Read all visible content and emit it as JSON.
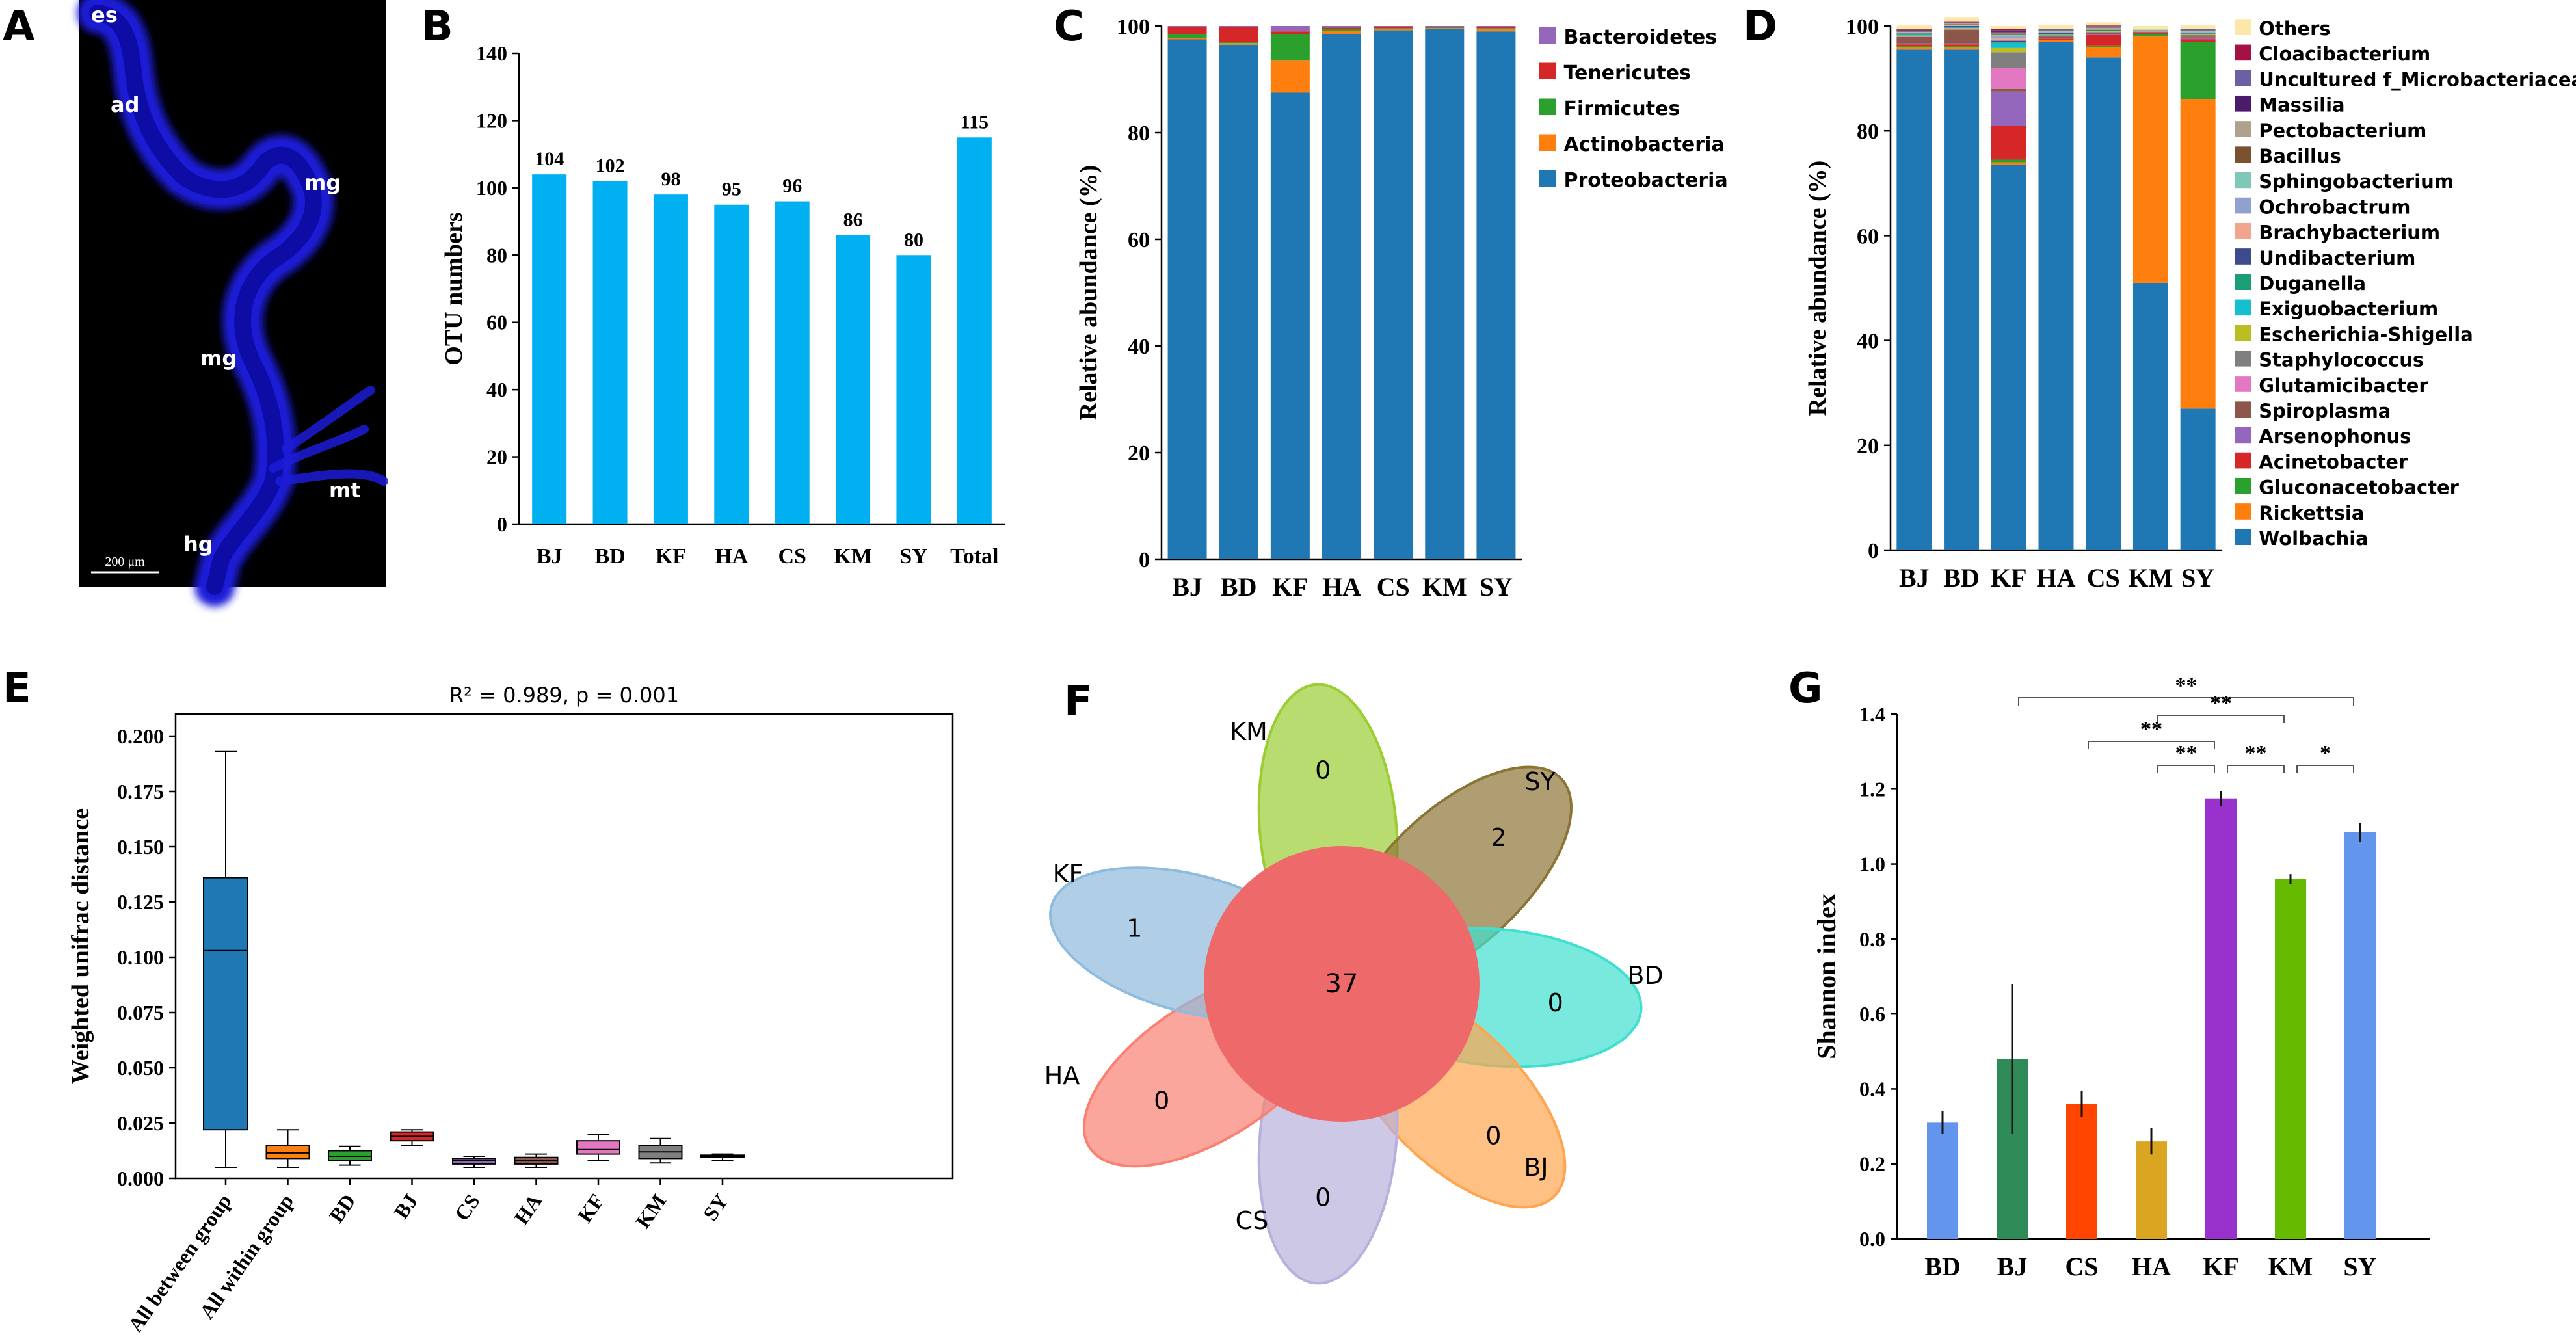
{
  "panel_letters": [
    "A",
    "B",
    "C",
    "D",
    "E",
    "F",
    "G"
  ],
  "micro": {
    "labels": [
      "es",
      "ad",
      "mg",
      "mg",
      "mt",
      "hg"
    ],
    "scale_label": "200 μm"
  },
  "chart_data": [
    {
      "panel": "B",
      "type": "bar",
      "categories": [
        "BJ",
        "BD",
        "KF",
        "HA",
        "CS",
        "KM",
        "SY",
        "Total"
      ],
      "values": [
        104,
        102,
        98,
        95,
        96,
        86,
        80,
        115
      ],
      "ylabel": "OTU numbers",
      "ylim": [
        0,
        140
      ],
      "yticks": [
        0,
        20,
        40,
        60,
        80,
        100,
        120,
        140
      ],
      "color": "#00B0F0"
    },
    {
      "panel": "C",
      "type": "bar",
      "stacked": true,
      "categories": [
        "BJ",
        "BD",
        "KF",
        "HA",
        "CS",
        "KM",
        "SY"
      ],
      "ylabel": "Relative abundance (%)",
      "ylim": [
        0,
        100
      ],
      "yticks": [
        0,
        20,
        40,
        60,
        80,
        100
      ],
      "series": [
        {
          "name": "Proteobacteria",
          "color": "#1F77B4",
          "values": [
            97.5,
            96.5,
            87.5,
            98.5,
            99.2,
            99.5,
            99.0
          ]
        },
        {
          "name": "Actinobacteria",
          "color": "#FF7F0E",
          "values": [
            0.3,
            0.3,
            6.0,
            0.6,
            0.2,
            0.1,
            0.4
          ]
        },
        {
          "name": "Firmicutes",
          "color": "#2CA02C",
          "values": [
            0.7,
            0.2,
            5.0,
            0.3,
            0.2,
            0.1,
            0.2
          ]
        },
        {
          "name": "Tenericutes",
          "color": "#D62728",
          "values": [
            1.3,
            2.8,
            0.5,
            0.3,
            0.2,
            0.1,
            0.2
          ]
        },
        {
          "name": "Bacteroidetes",
          "color": "#9467BD",
          "values": [
            0.2,
            0.2,
            1.0,
            0.3,
            0.2,
            0.2,
            0.2
          ]
        }
      ]
    },
    {
      "panel": "D",
      "type": "bar",
      "stacked": true,
      "categories": [
        "BJ",
        "BD",
        "KF",
        "HA",
        "CS",
        "KM",
        "SY"
      ],
      "ylabel": "Relative abundance (%)",
      "ylim": [
        0,
        100
      ],
      "yticks": [
        0,
        20,
        40,
        60,
        80,
        100
      ],
      "series": [
        {
          "name": "Wolbachia",
          "color": "#1F77B4",
          "values": [
            95.5,
            95.5,
            73.5,
            97.0,
            94.0,
            51.0,
            27.0
          ]
        },
        {
          "name": "Rickettsia",
          "color": "#FF7F0E",
          "values": [
            0.5,
            0.5,
            0.5,
            0.3,
            2.0,
            47.0,
            59.0
          ]
        },
        {
          "name": "Gluconacetobacter",
          "color": "#2CA02C",
          "values": [
            0.2,
            0.2,
            0.5,
            0.1,
            0.3,
            0.5,
            11.0
          ]
        },
        {
          "name": "Acinetobacter",
          "color": "#D62728",
          "values": [
            0.3,
            0.3,
            6.5,
            0.2,
            2.0,
            0.2,
            0.5
          ]
        },
        {
          "name": "Arsenophonus",
          "color": "#9467BD",
          "values": [
            0.2,
            0.2,
            6.5,
            0.1,
            0.2,
            0.1,
            0.3
          ]
        },
        {
          "name": "Spiroplasma",
          "color": "#8C564B",
          "values": [
            1.2,
            2.6,
            0.5,
            0.3,
            0.2,
            0.1,
            0.2
          ]
        },
        {
          "name": "Glutamicibacter",
          "color": "#E377C2",
          "values": [
            0.1,
            0.1,
            4.0,
            0.1,
            0.1,
            0.1,
            0.1
          ]
        },
        {
          "name": "Staphylococcus",
          "color": "#7F7F7F",
          "values": [
            0.1,
            0.1,
            3.0,
            0.1,
            0.1,
            0.1,
            0.2
          ]
        },
        {
          "name": "Escherichia-Shigella",
          "color": "#BCBD22",
          "values": [
            0.1,
            0.1,
            0.8,
            0.1,
            0.1,
            0.1,
            0.1
          ]
        },
        {
          "name": "Exiguobacterium",
          "color": "#17BECF",
          "values": [
            0.1,
            0.1,
            1.0,
            0.1,
            0.1,
            0.1,
            0.1
          ]
        },
        {
          "name": "Duganella",
          "color": "#1B9E77",
          "values": [
            0.1,
            0.1,
            0.2,
            0.1,
            0.1,
            0.0,
            0.1
          ]
        },
        {
          "name": "Undibacterium",
          "color": "#3B4B8C",
          "values": [
            0.2,
            0.2,
            0.2,
            0.2,
            0.1,
            0.0,
            0.1
          ]
        },
        {
          "name": "Brachybacterium",
          "color": "#F2A58E",
          "values": [
            0.1,
            0.1,
            0.4,
            0.1,
            0.1,
            0.0,
            0.1
          ]
        },
        {
          "name": "Ochrobactrum",
          "color": "#8FA1CC",
          "values": [
            0.1,
            0.1,
            0.4,
            0.1,
            0.1,
            0.0,
            0.1
          ]
        },
        {
          "name": "Sphingobacterium",
          "color": "#7FC8B8",
          "values": [
            0.1,
            0.1,
            0.3,
            0.1,
            0.1,
            0.0,
            0.1
          ]
        },
        {
          "name": "Bacillus",
          "color": "#7A5230",
          "values": [
            0.1,
            0.1,
            0.3,
            0.1,
            0.1,
            0.0,
            0.1
          ]
        },
        {
          "name": "Pectobacterium",
          "color": "#B0A18E",
          "values": [
            0.1,
            0.1,
            0.2,
            0.1,
            0.1,
            0.0,
            0.1
          ]
        },
        {
          "name": "Massilia",
          "color": "#4B1A6B",
          "values": [
            0.1,
            0.1,
            0.2,
            0.1,
            0.1,
            0.0,
            0.1
          ]
        },
        {
          "name": "Uncultured f_Microbacteriaceae",
          "color": "#6B5FA6",
          "values": [
            0.1,
            0.1,
            0.2,
            0.1,
            0.1,
            0.0,
            0.1
          ]
        },
        {
          "name": "Cloacibacterium",
          "color": "#A31146",
          "values": [
            0.1,
            0.1,
            0.2,
            0.1,
            0.1,
            0.0,
            0.1
          ]
        },
        {
          "name": "Others",
          "color": "#FCE7A6",
          "values": [
            0.7,
            0.9,
            0.6,
            0.7,
            0.6,
            0.7,
            0.6
          ]
        }
      ]
    },
    {
      "panel": "E",
      "type": "box",
      "title": "R² = 0.989, p = 0.001",
      "ylabel": "Weighted unifrac distance",
      "ylim": [
        0,
        0.21
      ],
      "yticks": [
        "0.000",
        "0.025",
        "0.050",
        "0.075",
        "0.100",
        "0.125",
        "0.150",
        "0.175",
        "0.200"
      ],
      "categories": [
        "All between group",
        "All within group",
        "BD",
        "BJ",
        "CS",
        "HA",
        "KF",
        "KM",
        "SY"
      ],
      "boxes": [
        {
          "min": 0.005,
          "q1": 0.022,
          "median": 0.103,
          "q3": 0.136,
          "max": 0.193,
          "color": "#1F77B4"
        },
        {
          "min": 0.005,
          "q1": 0.009,
          "median": 0.0115,
          "q3": 0.015,
          "max": 0.022,
          "color": "#FF7F0E"
        },
        {
          "min": 0.006,
          "q1": 0.008,
          "median": 0.01,
          "q3": 0.0125,
          "max": 0.0145,
          "color": "#2CA02C"
        },
        {
          "min": 0.015,
          "q1": 0.017,
          "median": 0.019,
          "q3": 0.021,
          "max": 0.022,
          "color": "#D62728"
        },
        {
          "min": 0.005,
          "q1": 0.0065,
          "median": 0.008,
          "q3": 0.009,
          "max": 0.01,
          "color": "#9467BD"
        },
        {
          "min": 0.005,
          "q1": 0.0065,
          "median": 0.008,
          "q3": 0.0095,
          "max": 0.011,
          "color": "#8C564B"
        },
        {
          "min": 0.008,
          "q1": 0.011,
          "median": 0.013,
          "q3": 0.017,
          "max": 0.02,
          "color": "#E377C2"
        },
        {
          "min": 0.007,
          "q1": 0.009,
          "median": 0.012,
          "q3": 0.015,
          "max": 0.018,
          "color": "#7F7F7F"
        },
        {
          "min": 0.008,
          "q1": 0.0095,
          "median": 0.01,
          "q3": 0.0105,
          "max": 0.011,
          "color": "#BCBD22"
        }
      ]
    },
    {
      "panel": "F",
      "type": "venn-flower",
      "center_value": "37",
      "petals": [
        {
          "name": "KM",
          "value": "0",
          "color": "#9ACD32"
        },
        {
          "name": "SY",
          "value": "2",
          "color": "#8B7535"
        },
        {
          "name": "BD",
          "value": "0",
          "color": "#40E0D0"
        },
        {
          "name": "BJ",
          "value": "0",
          "color": "#FFA54F"
        },
        {
          "name": "CS",
          "value": "0",
          "color": "#B7B0DC"
        },
        {
          "name": "HA",
          "value": "0",
          "color": "#FA8072"
        },
        {
          "name": "KF",
          "value": "1",
          "color": "#8FBBDD"
        }
      ],
      "center_color": "#EE6A6A"
    },
    {
      "panel": "G",
      "type": "bar",
      "categories": [
        "BD",
        "BJ",
        "CS",
        "HA",
        "KF",
        "KM",
        "SY"
      ],
      "values": [
        0.31,
        0.48,
        0.36,
        0.26,
        1.175,
        0.96,
        1.085
      ],
      "errors": [
        0.03,
        0.2,
        0.035,
        0.035,
        0.02,
        0.013,
        0.025
      ],
      "colors": [
        "#6495ED",
        "#2E8B57",
        "#FF4500",
        "#DAA520",
        "#9932CC",
        "#66BB00",
        "#6495ED"
      ],
      "ylabel": "Shannon index",
      "ylim": [
        0,
        1.4
      ],
      "yticks": [
        "0.0",
        "0.2",
        "0.4",
        "0.6",
        "0.8",
        "1.0",
        "1.2",
        "1.4"
      ],
      "significance": [
        {
          "from": "BJ",
          "to": "SY",
          "label": "**"
        },
        {
          "from": "HA",
          "to": "KM",
          "label": "**"
        },
        {
          "from": "CS",
          "to": "KF",
          "label": "**"
        },
        {
          "from": "HA",
          "to": "KF",
          "label": "**"
        },
        {
          "from": "KF",
          "to": "KM",
          "label": "**"
        },
        {
          "from": "KM",
          "to": "SY",
          "label": "*"
        }
      ]
    }
  ]
}
